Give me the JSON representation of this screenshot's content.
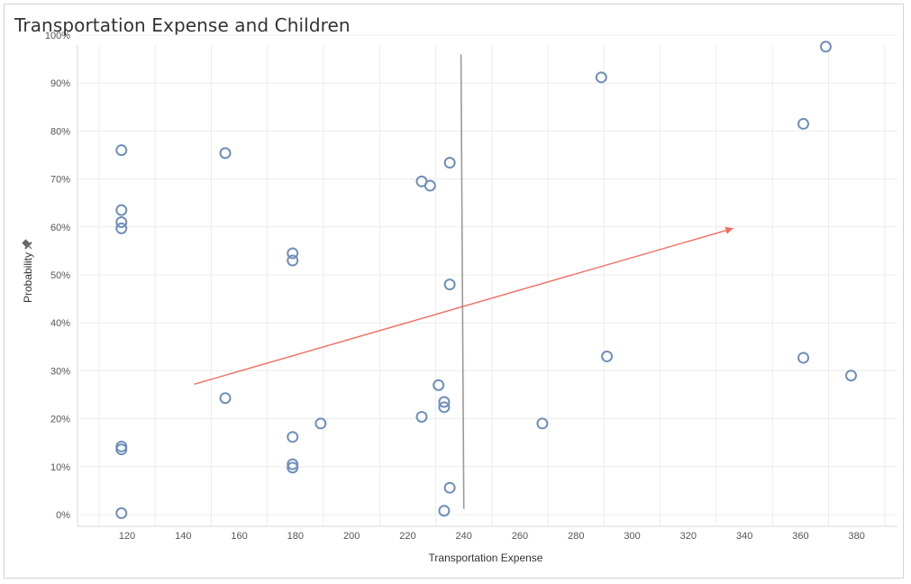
{
  "title": "Transportation Expense and Children",
  "chart_data": {
    "type": "scatter",
    "title": "Transportation Expense and Children",
    "xlabel": "Transportation Expense",
    "ylabel": "Probability",
    "xlim": [
      100,
      400
    ],
    "ylim": [
      0,
      1
    ],
    "x_ticks": [
      "120",
      "140",
      "160",
      "180",
      "200",
      "220",
      "240",
      "260",
      "280",
      "300",
      "320",
      "340",
      "360",
      "380"
    ],
    "y_ticks": [
      "0%",
      "10%",
      "20%",
      "30%",
      "40%",
      "50%",
      "60%",
      "70%",
      "80%",
      "90%",
      "100%"
    ],
    "grid": true,
    "marker": "hollow circle",
    "marker_color": "#6e8fb8",
    "points": [
      {
        "x": 118,
        "y": 0.76
      },
      {
        "x": 118,
        "y": 0.635
      },
      {
        "x": 118,
        "y": 0.61
      },
      {
        "x": 118,
        "y": 0.597
      },
      {
        "x": 118,
        "y": 0.142
      },
      {
        "x": 118,
        "y": 0.136
      },
      {
        "x": 118,
        "y": 0.003
      },
      {
        "x": 155,
        "y": 0.754
      },
      {
        "x": 155,
        "y": 0.243
      },
      {
        "x": 179,
        "y": 0.545
      },
      {
        "x": 179,
        "y": 0.53
      },
      {
        "x": 179,
        "y": 0.162
      },
      {
        "x": 179,
        "y": 0.105
      },
      {
        "x": 179,
        "y": 0.098
      },
      {
        "x": 189,
        "y": 0.19
      },
      {
        "x": 225,
        "y": 0.695
      },
      {
        "x": 225,
        "y": 0.204
      },
      {
        "x": 228,
        "y": 0.686
      },
      {
        "x": 231,
        "y": 0.27
      },
      {
        "x": 233,
        "y": 0.235
      },
      {
        "x": 233,
        "y": 0.224
      },
      {
        "x": 233,
        "y": 0.008
      },
      {
        "x": 235,
        "y": 0.734
      },
      {
        "x": 235,
        "y": 0.48
      },
      {
        "x": 235,
        "y": 0.056
      },
      {
        "x": 268,
        "y": 0.19
      },
      {
        "x": 289,
        "y": 0.912
      },
      {
        "x": 291,
        "y": 0.33
      },
      {
        "x": 361,
        "y": 0.815
      },
      {
        "x": 361,
        "y": 0.327
      },
      {
        "x": 369,
        "y": 0.976
      },
      {
        "x": 378,
        "y": 0.29
      }
    ],
    "annotations": [
      {
        "type": "vertical line",
        "color": "#9a9a9a",
        "from": {
          "x": 239,
          "y": 0.96
        },
        "to": {
          "x": 240,
          "y": 0.012
        }
      },
      {
        "type": "arrow",
        "color": "#f26d60",
        "from": {
          "x": 144,
          "y": 0.272
        },
        "to": {
          "x": 336,
          "y": 0.597
        }
      }
    ]
  }
}
